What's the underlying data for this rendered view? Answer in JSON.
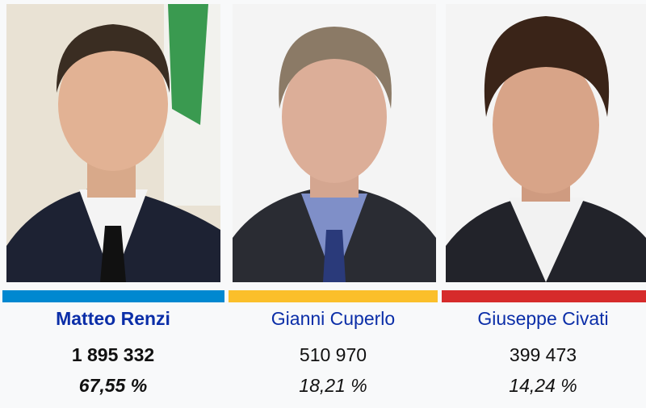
{
  "candidates": [
    {
      "name": "Matteo Renzi",
      "votes": "1 895 332",
      "percent": "67,55 %",
      "percent_value": 67.55,
      "color": "#0088d0",
      "winner": true
    },
    {
      "name": "Gianni Cuperlo",
      "votes": "510 970",
      "percent": "18,21 %",
      "percent_value": 18.21,
      "color": "#fbbf2a",
      "winner": false
    },
    {
      "name": "Giuseppe Civati",
      "votes": "399 473",
      "percent": "14,24 %",
      "percent_value": 14.24,
      "color": "#d62b2b",
      "winner": false
    }
  ]
}
